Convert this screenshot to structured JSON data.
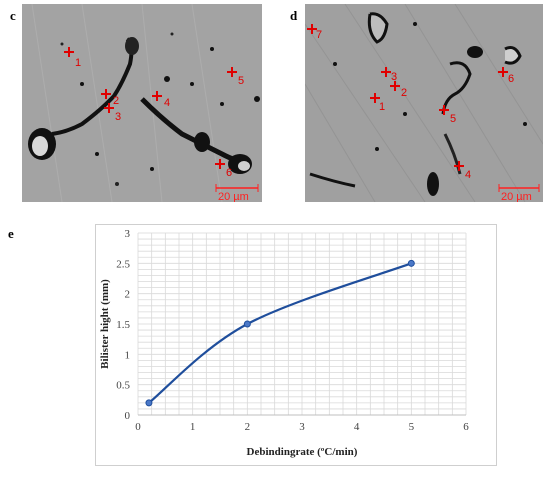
{
  "panels": {
    "c": {
      "letter": "c",
      "scale_label": "20 µm",
      "markers": [
        "1",
        "2",
        "3",
        "4",
        "5",
        "6"
      ]
    },
    "d": {
      "letter": "d",
      "scale_label": "20 µm",
      "markers": [
        "7",
        "3",
        "2",
        "1",
        "5",
        "4",
        "6"
      ]
    },
    "e": {
      "letter": "e"
    }
  },
  "colors": {
    "marker": "#e00000",
    "line": "#1f4e9c",
    "grid": "#d9d9d9",
    "sem_background": "#9d9d9d"
  },
  "chart_data": {
    "type": "line",
    "xlabel": "Debindingrate (ºC/min)",
    "ylabel": "Bilister hight (mm)",
    "xlim": [
      0,
      6
    ],
    "ylim": [
      0,
      3
    ],
    "x_ticks": [
      "0",
      "1",
      "2",
      "3",
      "4",
      "5",
      "6"
    ],
    "y_ticks": [
      "0",
      "0.5",
      "1",
      "1.5",
      "2",
      "2.5",
      "3"
    ],
    "grid": true,
    "smooth": true,
    "series": [
      {
        "x": [
          0.2,
          2,
          5
        ],
        "y": [
          0.2,
          1.5,
          2.5
        ]
      }
    ]
  }
}
